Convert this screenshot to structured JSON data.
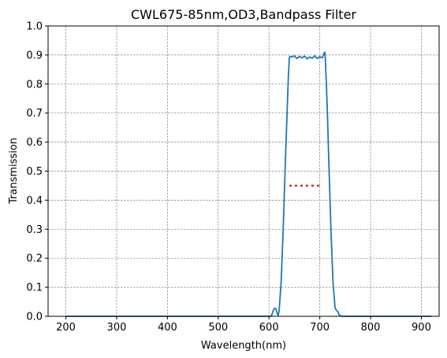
{
  "chart_data": {
    "type": "line",
    "title": "CWL675-85nm,OD3,Bandpass Filter",
    "xlabel": "Wavelength(nm)",
    "ylabel": "Transmission",
    "xlim": [
      165,
      935
    ],
    "ylim": [
      0,
      1.0
    ],
    "xticks": [
      200,
      300,
      400,
      500,
      600,
      700,
      800,
      900
    ],
    "yticks": [
      0.0,
      0.1,
      0.2,
      0.3,
      0.4,
      0.5,
      0.6,
      0.7,
      0.8,
      0.9,
      1.0
    ],
    "grid": true,
    "series": [
      {
        "color": "#1f77b4",
        "style": "solid",
        "x": [
          200,
          300,
          400,
          500,
          600,
          605,
          608,
          611,
          614,
          616,
          618,
          620,
          624,
          628,
          632,
          636,
          638,
          640,
          641,
          645,
          650,
          655,
          660,
          665,
          670,
          675,
          680,
          685,
          690,
          695,
          700,
          705,
          708,
          710,
          711,
          712,
          713,
          715,
          718,
          722,
          726,
          730,
          733,
          736,
          738,
          740,
          745,
          750,
          800,
          900,
          920
        ],
        "y": [
          0,
          0,
          0,
          0,
          0,
          0.002,
          0.018,
          0.028,
          0.025,
          0.01,
          0.003,
          0.02,
          0.12,
          0.3,
          0.52,
          0.72,
          0.82,
          0.89,
          0.895,
          0.893,
          0.897,
          0.888,
          0.895,
          0.89,
          0.896,
          0.887,
          0.893,
          0.889,
          0.897,
          0.888,
          0.894,
          0.89,
          0.905,
          0.91,
          0.885,
          0.84,
          0.8,
          0.7,
          0.52,
          0.3,
          0.12,
          0.03,
          0.02,
          0.015,
          0.005,
          0.002,
          0,
          0,
          0,
          0,
          0
        ]
      },
      {
        "color": "#d62728",
        "style": "dotted",
        "x": [
          640,
          705
        ],
        "y": [
          0.45,
          0.45
        ]
      }
    ]
  }
}
